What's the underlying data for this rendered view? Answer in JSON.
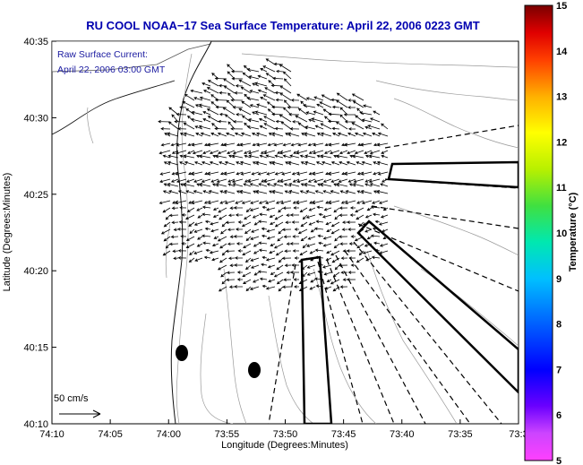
{
  "chart_data": {
    "type": "map",
    "title": "RU COOL  NOAA−17  Sea Surface Temperature:  April 22, 2006 0223 GMT",
    "overlay_line1": "Raw Surface Current:",
    "overlay_line2": "April 22, 2006 03:00 GMT",
    "xlabel": "Longitude (Degrees:Minutes)",
    "ylabel": "Latitude (Degrees:Minutes)",
    "x_ticks": [
      "74:10",
      "74:05",
      "74:00",
      "73:55",
      "73:50",
      "73:45",
      "73:40",
      "73:35",
      "73:3"
    ],
    "y_ticks": [
      "40:10",
      "40:15",
      "40:20",
      "40:25",
      "40:30",
      "40:35"
    ],
    "scale_label": "50 cm/s",
    "colorbar": {
      "label": "Temperature (°C)",
      "min": 5,
      "max": 15,
      "ticks": [
        "5",
        "6",
        "7",
        "8",
        "9",
        "10",
        "11",
        "12",
        "13",
        "14",
        "15"
      ]
    }
  }
}
